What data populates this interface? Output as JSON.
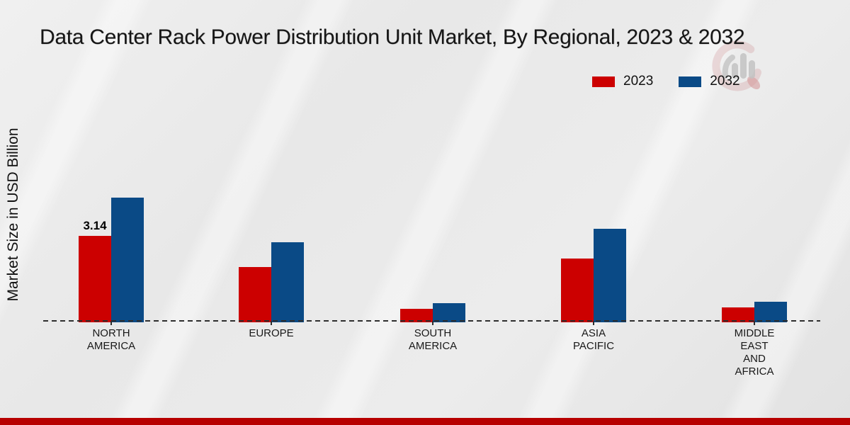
{
  "page": {
    "title": "Data Center Rack Power Distribution Unit Market, By Regional, 2023 & 2032",
    "ylabel": "Market Size in USD Billion",
    "background_color": "#e9e9e9",
    "footer_color": "#b70000"
  },
  "legend": {
    "position": "top-right",
    "items": [
      {
        "label": "2023",
        "color": "#cc0000"
      },
      {
        "label": "2032",
        "color": "#0a4a86"
      }
    ]
  },
  "watermark": {
    "name": "market-research-future-logo",
    "ring_color": "#cc8a8c",
    "bar_color": "#9a9a9a",
    "drop_color": "#c0494c"
  },
  "chart_data": {
    "type": "bar",
    "title": "Data Center Rack Power Distribution Unit Market, By Regional, 2023 & 2032",
    "xlabel": "",
    "ylabel": "Market Size in USD Billion",
    "unit": "USD Billion",
    "categories": [
      "NORTH AMERICA",
      "EUROPE",
      "SOUTH AMERICA",
      "ASIA PACIFIC",
      "MIDDLE EAST AND AFRICA"
    ],
    "category_label_lines": [
      [
        "NORTH",
        "AMERICA"
      ],
      [
        "EUROPE"
      ],
      [
        "SOUTH",
        "AMERICA"
      ],
      [
        "ASIA",
        "PACIFIC"
      ],
      [
        "MIDDLE",
        "EAST",
        "AND",
        "AFRICA"
      ]
    ],
    "series": [
      {
        "name": "2023",
        "color": "#cc0000",
        "values": [
          3.14,
          2.0,
          0.45,
          2.3,
          0.5
        ]
      },
      {
        "name": "2032",
        "color": "#0a4a86",
        "values": [
          4.55,
          2.9,
          0.65,
          3.4,
          0.7
        ]
      }
    ],
    "data_labels": [
      {
        "series": "2023",
        "category": "NORTH AMERICA",
        "text": "3.14"
      }
    ],
    "baseline_style": "dashed",
    "gridlines": false,
    "ylim": [
      0,
      5
    ],
    "legend_position": "top-right"
  }
}
